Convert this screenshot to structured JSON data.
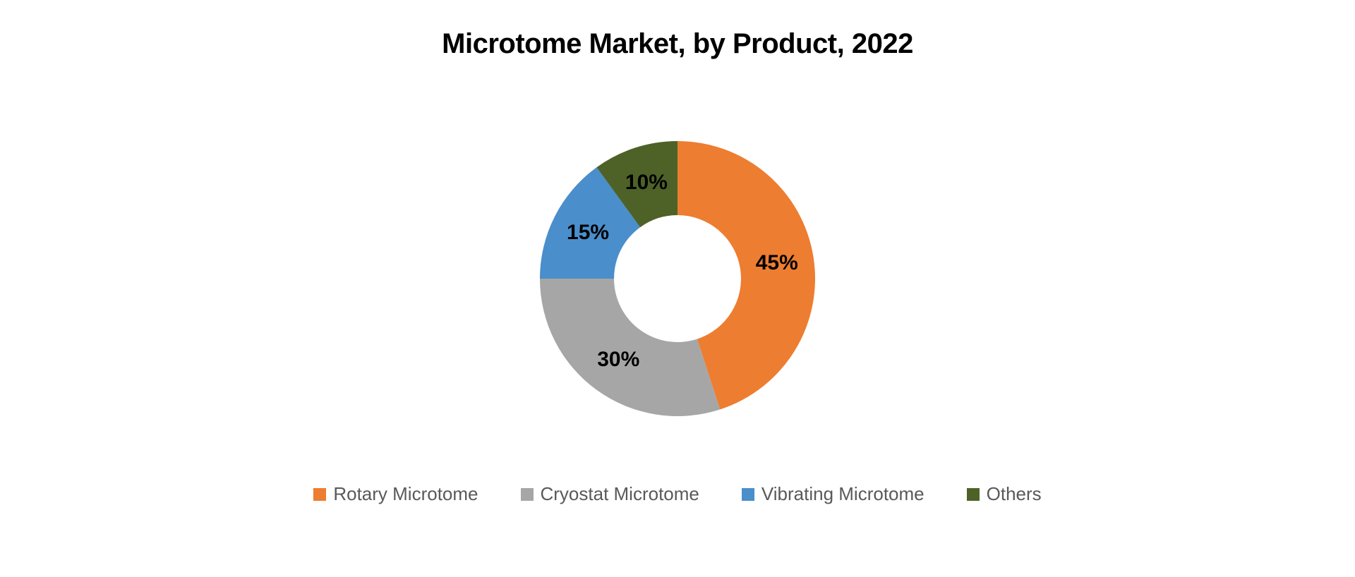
{
  "chart": {
    "type": "donut",
    "title": "Microtome Market, by Product, 2022",
    "title_fontsize": 40,
    "title_fontweight": 600,
    "background_color": "#ffffff",
    "outer_radius": 195,
    "inner_radius": 90,
    "start_angle_deg": -90,
    "label_fontsize": 30,
    "label_fontweight": 700,
    "label_color": "#000000",
    "legend_fontsize": 26,
    "legend_color": "#595959",
    "legend_swatch_size": 18,
    "slices": [
      {
        "label": "Rotary Microtome",
        "value": 45,
        "display": "45%",
        "color": "#ed7d31"
      },
      {
        "label": "Cryostat Microtome",
        "value": 30,
        "display": "30%",
        "color": "#a6a6a6"
      },
      {
        "label": "Vibrating Microtome",
        "value": 15,
        "display": "15%",
        "color": "#4a8ecb"
      },
      {
        "label": "Others",
        "value": 10,
        "display": "10%",
        "color": "#4e6228"
      }
    ]
  }
}
